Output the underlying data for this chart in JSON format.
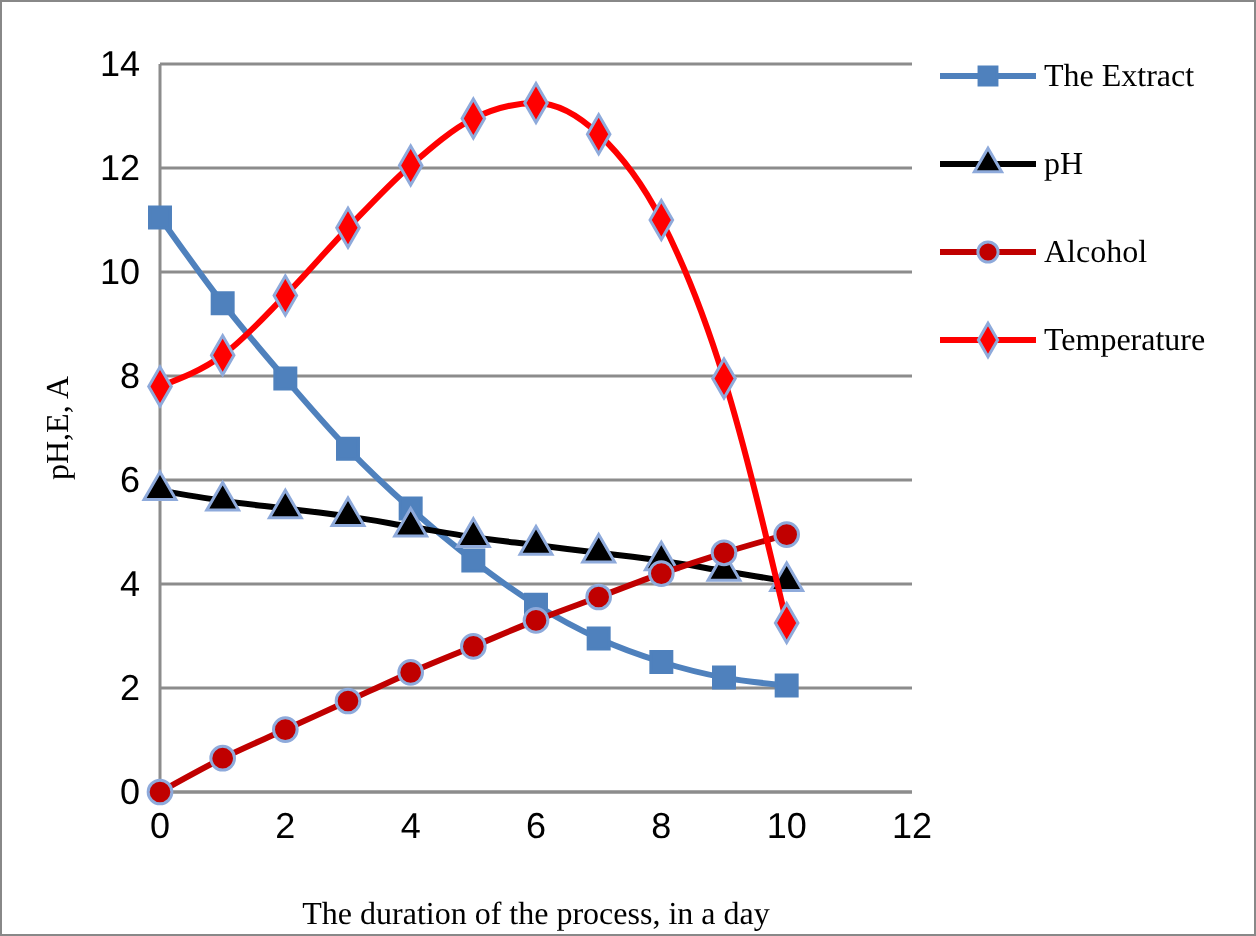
{
  "chart_data": {
    "type": "line",
    "xlabel": "The duration of the process, in a day",
    "ylabel": "pH,E, A",
    "x": [
      0,
      1,
      2,
      3,
      4,
      5,
      6,
      7,
      8,
      9,
      10
    ],
    "xlim": [
      0,
      12
    ],
    "xticks": [
      0,
      2,
      4,
      6,
      8,
      10,
      12
    ],
    "ylim": [
      0,
      14
    ],
    "yticks": [
      0,
      2,
      4,
      6,
      8,
      10,
      12,
      14
    ],
    "grid": "y",
    "legend": "right",
    "line_style": "solid",
    "series": [
      {
        "name": "The Extract",
        "color": "#4f81bd",
        "marker": "square",
        "values": [
          11.05,
          9.4,
          7.95,
          6.6,
          5.45,
          4.45,
          3.6,
          2.95,
          2.5,
          2.2,
          2.05
        ]
      },
      {
        "name": "pH",
        "color": "#000000",
        "marker": "triangle",
        "values": [
          5.8,
          5.6,
          5.45,
          5.3,
          5.1,
          4.9,
          4.75,
          4.6,
          4.45,
          4.25,
          4.05
        ]
      },
      {
        "name": "Alcohol",
        "color": "#c00000",
        "marker": "circle",
        "values": [
          0,
          0.65,
          1.2,
          1.75,
          2.3,
          2.8,
          3.3,
          3.75,
          4.2,
          4.6,
          4.95
        ]
      },
      {
        "name": "Temperature",
        "color": "#ff0000",
        "marker": "diamond",
        "values": [
          7.8,
          8.4,
          9.55,
          10.85,
          12.05,
          12.95,
          13.25,
          12.65,
          11.0,
          7.95,
          3.25
        ]
      }
    ]
  }
}
